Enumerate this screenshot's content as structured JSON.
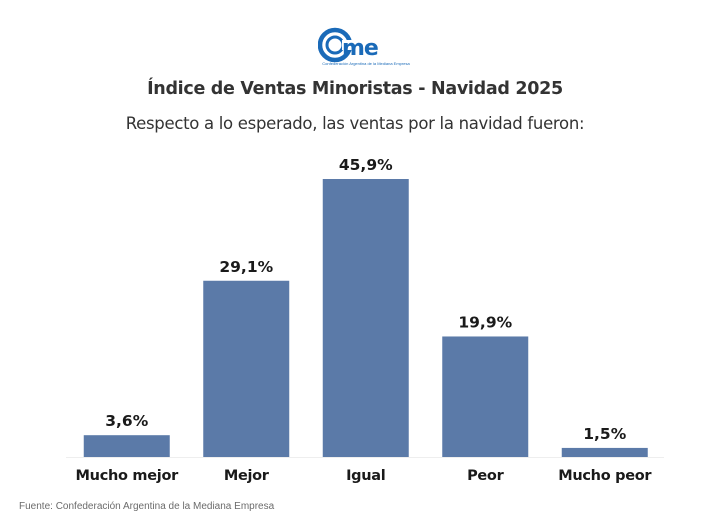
{
  "logo": {
    "text": "came",
    "tagline": "Confederación Argentina de la Mediana Empresa",
    "color": "#1a6ab8"
  },
  "chart_data": {
    "type": "bar",
    "title": "Índice de Ventas Minoristas - Navidad 2025",
    "subtitle": "Respecto a lo esperado, las ventas por la navidad fueron:",
    "categories": [
      "Mucho mejor",
      "Mejor",
      "Igual",
      "Peor",
      "Mucho peor"
    ],
    "values": [
      3.6,
      29.1,
      45.9,
      19.9,
      1.5
    ],
    "data_labels": [
      "3,6%",
      "29,1%",
      "45,9%",
      "19,9%",
      "1,5%"
    ],
    "xlabel": "",
    "ylabel": "",
    "ylim": [
      0,
      45.9
    ],
    "grid": false,
    "legend": "none",
    "bar_color": "#5b7aa8",
    "baseline_color": "#eeeeee"
  },
  "source": "Fuente: Confederación Argentina de la Mediana Empresa"
}
